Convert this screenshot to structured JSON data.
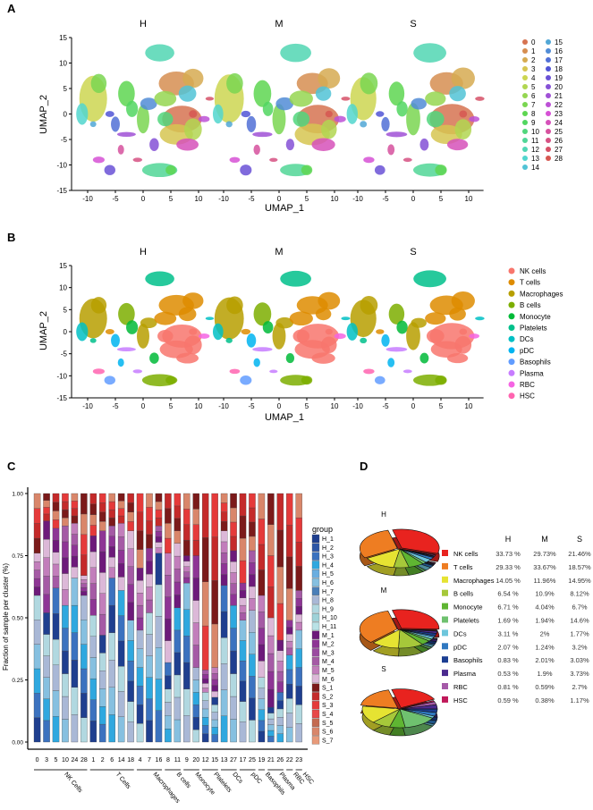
{
  "panel_labels": [
    "A",
    "B",
    "C",
    "D"
  ],
  "chart_data": [
    {
      "type": "scatter",
      "panel": "A",
      "facets": [
        "H",
        "M",
        "S"
      ],
      "xlabel": "UMAP_1",
      "ylabel": "UMAP_2",
      "x_ticks": [
        "-10",
        "-5",
        "0",
        "5",
        "10"
      ],
      "y_ticks": [
        "15",
        "10",
        "5",
        "0",
        "-5",
        "-10",
        "-15"
      ],
      "xlim": [
        -13,
        13
      ],
      "ylim": [
        -15,
        15
      ],
      "legend": [
        "0",
        "1",
        "2",
        "3",
        "4",
        "5",
        "6",
        "7",
        "8",
        "9",
        "10",
        "11",
        "12",
        "13",
        "14",
        "15",
        "16",
        "17",
        "18",
        "19",
        "20",
        "21",
        "22",
        "23",
        "24",
        "25",
        "26",
        "27",
        "28"
      ],
      "legend_placement": "right"
    },
    {
      "type": "scatter",
      "panel": "B",
      "facets": [
        "H",
        "M",
        "S"
      ],
      "xlabel": "UMAP_1",
      "ylabel": "UMAP_2",
      "x_ticks": [
        "-10",
        "-5",
        "0",
        "5",
        "10"
      ],
      "y_ticks": [
        "15",
        "10",
        "5",
        "0",
        "-5",
        "-10",
        "-15"
      ],
      "xlim": [
        -13,
        13
      ],
      "ylim": [
        -15,
        15
      ],
      "legend": [
        "NK cells",
        "T cells",
        "Macrophages",
        "B cells",
        "Monocyte",
        "Platelets",
        "DCs",
        "pDC",
        "Basophils",
        "Plasma",
        "RBC",
        "HSC"
      ],
      "legend_colors": [
        "#F8766D",
        "#DE8C00",
        "#B79F00",
        "#7CAE00",
        "#00BA38",
        "#00C08B",
        "#00BFC4",
        "#00B4F0",
        "#619CFF",
        "#C77CFF",
        "#F564E3",
        "#FF64B0"
      ],
      "legend_placement": "right"
    },
    {
      "type": "bar",
      "panel": "C",
      "stacked": true,
      "ylabel": "Fraction of sample per cluster (%)",
      "y_ticks": [
        "0.00",
        "0.25",
        "0.50",
        "0.75",
        "1.00"
      ],
      "ylim": [
        0,
        1
      ],
      "categories": [
        "0",
        "3",
        "5",
        "10",
        "24",
        "28",
        "1",
        "2",
        "6",
        "14",
        "18",
        "4",
        "7",
        "16",
        "8",
        "11",
        "9",
        "20",
        "12",
        "15",
        "13",
        "27",
        "17",
        "25",
        "19",
        "21",
        "26",
        "22",
        "23"
      ],
      "category_groups": [
        {
          "label": "NK Cells",
          "clusters": [
            "0",
            "3",
            "5",
            "10",
            "24",
            "28"
          ]
        },
        {
          "label": "T Cells",
          "clusters": [
            "1",
            "2",
            "6",
            "14",
            "18"
          ]
        },
        {
          "label": "Macrophages",
          "clusters": [
            "4",
            "7",
            "16"
          ]
        },
        {
          "label": "B cells",
          "clusters": [
            "8",
            "11"
          ]
        },
        {
          "label": "Monocyte",
          "clusters": [
            "9",
            "20"
          ]
        },
        {
          "label": "Platelets",
          "clusters": [
            "12",
            "15"
          ]
        },
        {
          "label": "DCs",
          "clusters": [
            "13",
            "27"
          ]
        },
        {
          "label": "pDC",
          "clusters": [
            "17",
            "25"
          ]
        },
        {
          "label": "Basophils",
          "clusters": [
            "19"
          ]
        },
        {
          "label": "Plasma",
          "clusters": [
            "21",
            "26"
          ]
        },
        {
          "label": "RBC",
          "clusters": [
            "22"
          ]
        },
        {
          "label": "HSC",
          "clusters": [
            "23"
          ]
        }
      ],
      "series": [
        {
          "name": "H",
          "values": [
            0.59,
            0.52,
            0.62,
            0.55,
            0.66,
            0.59,
            0.51,
            0.43,
            0.66,
            0.61,
            0.49,
            0.45,
            0.52,
            0.76,
            0.32,
            0.54,
            0.64,
            0.3,
            0.2,
            0.18,
            0.63,
            0.55,
            0.49,
            0.53,
            0.26,
            0.14,
            0.2,
            0.35,
            0.45
          ]
        },
        {
          "name": "M",
          "values": [
            0.17,
            0.37,
            0.24,
            0.32,
            0.22,
            0.08,
            0.32,
            0.42,
            0.21,
            0.27,
            0.36,
            0.25,
            0.26,
            0.11,
            0.44,
            0.26,
            0.11,
            0.45,
            0.09,
            0.12,
            0.22,
            0.22,
            0.15,
            0.24,
            0.33,
            0.36,
            0.21,
            0.14,
            0.16
          ]
        },
        {
          "name": "S",
          "values": [
            0.24,
            0.11,
            0.14,
            0.13,
            0.12,
            0.33,
            0.17,
            0.15,
            0.13,
            0.12,
            0.15,
            0.3,
            0.22,
            0.13,
            0.24,
            0.2,
            0.25,
            0.25,
            0.71,
            0.7,
            0.15,
            0.23,
            0.36,
            0.23,
            0.41,
            0.5,
            0.59,
            0.51,
            0.39
          ]
        }
      ],
      "legend_title": "group",
      "legend": [
        "H_1",
        "H_2",
        "H_3",
        "H_4",
        "H_5",
        "H_6",
        "H_7",
        "H_8",
        "H_9",
        "H_10",
        "H_11",
        "M_1",
        "M_2",
        "M_3",
        "M_4",
        "M_5",
        "M_6",
        "S_1",
        "S_2",
        "S_3",
        "S_4",
        "S_5",
        "S_6",
        "S_7"
      ],
      "legend_colors": [
        "#1f3f8f",
        "#2d56a6",
        "#3b72bf",
        "#2fa8df",
        "#6aaee0",
        "#86c0e0",
        "#4a7fb8",
        "#a9b8d6",
        "#b1d8e0",
        "#9fd2d8",
        "#b9e2e6",
        "#6d1a7a",
        "#8e3595",
        "#9a4aa0",
        "#a55aa5",
        "#c27ebb",
        "#dcb8d8",
        "#7b1a1a",
        "#c42a2a",
        "#e53a3a",
        "#e84848",
        "#c46a50",
        "#d9866a",
        "#e89a7a"
      ],
      "legend_placement": "right"
    },
    {
      "type": "pie",
      "panel": "D",
      "facets": [
        "H",
        "M",
        "S"
      ],
      "categories": [
        "NK cells",
        "T cells",
        "Macrophages",
        "B cells",
        "Monocyte",
        "Platelets",
        "DCs",
        "pDC",
        "Basophils",
        "Plasma",
        "RBC",
        "HSC"
      ],
      "colors": [
        "#e8231f",
        "#ee7d22",
        "#e6e332",
        "#a6c83a",
        "#5fb532",
        "#6fc16f",
        "#6dc6dc",
        "#2f78c0",
        "#1b3e92",
        "#4b2a8e",
        "#a55aa8",
        "#c0195a"
      ],
      "series": [
        {
          "name": "H",
          "values": [
            33.73,
            29.33,
            14.05,
            6.54,
            6.71,
            1.69,
            3.11,
            2.07,
            0.83,
            0.53,
            0.81,
            0.59
          ],
          "labels": [
            "33.73 %",
            "29.33 %",
            "14.05 %",
            "6.54 %",
            "6.71 %",
            "1.69 %",
            "3.11 %",
            "2.07 %",
            "0.83 %",
            "0.53 %",
            "0.81 %",
            "0.59 %"
          ]
        },
        {
          "name": "M",
          "values": [
            29.73,
            33.67,
            11.96,
            10.9,
            4.04,
            1.94,
            2,
            1.24,
            2.01,
            1.9,
            0.59,
            0.38
          ],
          "labels": [
            "29.73%",
            "33.67%",
            "11.96%",
            "10.9%",
            "4.04%",
            "1.94%",
            "2%",
            "1.24%",
            "2.01%",
            "1.9%",
            "0.59%",
            "0.38%"
          ]
        },
        {
          "name": "S",
          "values": [
            21.46,
            18.57,
            14.95,
            8.12,
            6.7,
            14.6,
            1.77,
            3.2,
            3.03,
            3.73,
            2.7,
            1.17
          ],
          "labels": [
            "21.46%",
            "18.57%",
            "14.95%",
            "8.12%",
            "6.7%",
            "14.6%",
            "1.77%",
            "3.2%",
            "3.03%",
            "3.73%",
            "2.7%",
            "1.17%"
          ]
        }
      ]
    }
  ]
}
